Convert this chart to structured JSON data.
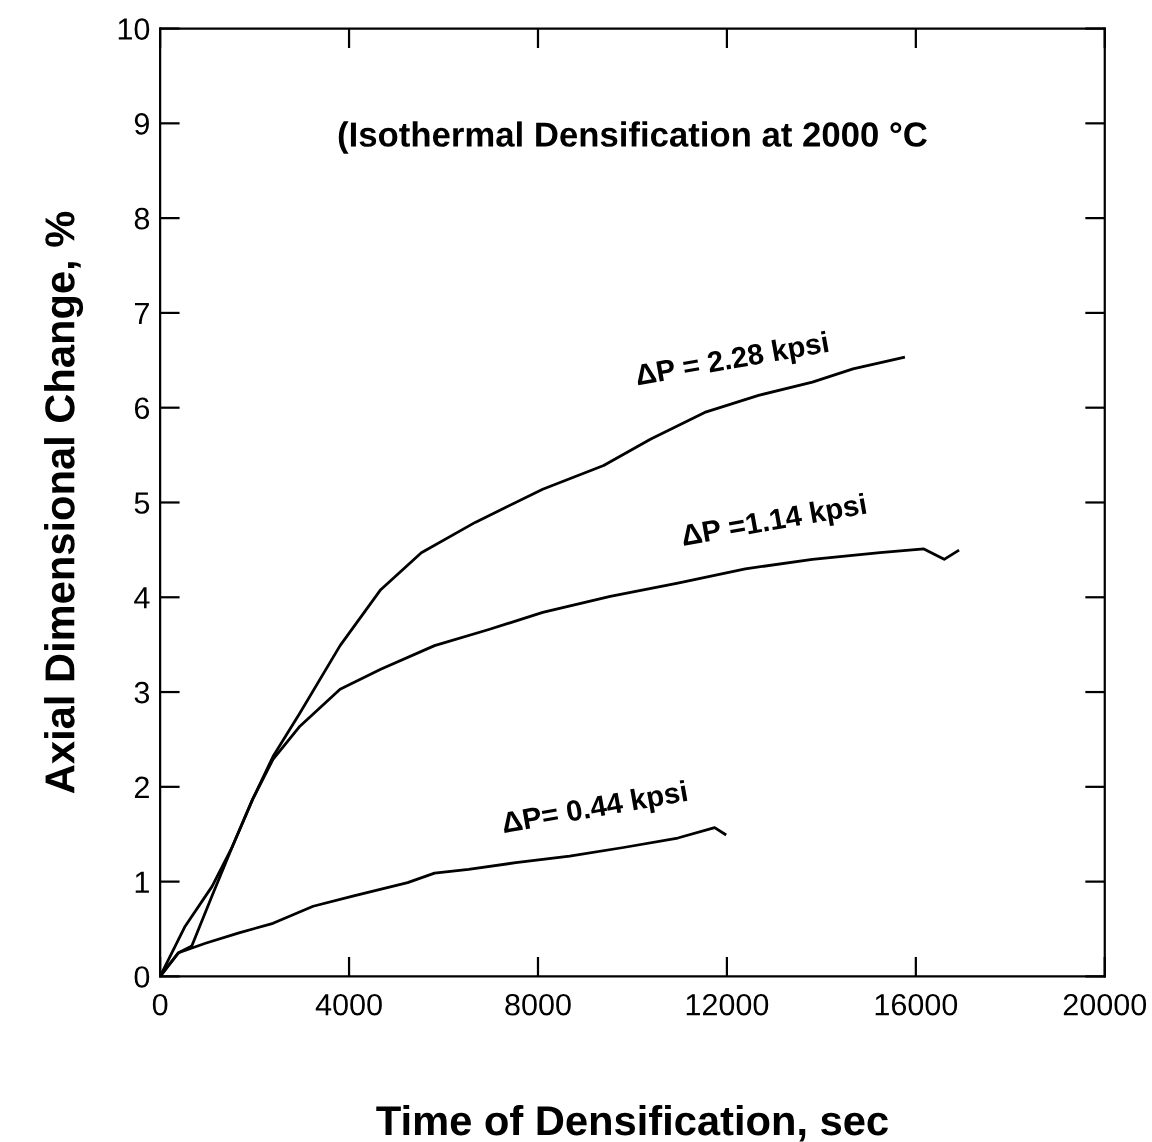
{
  "chart_data": {
    "type": "line",
    "title": "(Isothermal Densification at 2000 °C",
    "xlabel": "Time of Densification, sec",
    "ylabel": "Axial Dimensional Change, %",
    "xlim": [
      0,
      20000
    ],
    "xticks": [
      0,
      4000,
      8000,
      12000,
      16000,
      20000
    ],
    "ylim": [
      0,
      10
    ],
    "yticks": [
      0,
      1,
      2,
      3,
      4,
      5,
      6,
      7,
      8,
      9,
      10
    ],
    "grid": false,
    "legend": false,
    "line_style": "solid",
    "marker": "none",
    "series": [
      {
        "name": "ΔP = 2.28 kpsi",
        "color": "#000000",
        "x": [
          0,
          530,
          1100,
          1530,
          1960,
          2390,
          2960,
          3810,
          4670,
          5530,
          6670,
          8100,
          9390,
          10390,
          11530,
          12670,
          13810,
          14670,
          15740
        ],
        "values": [
          0,
          0.53,
          0.95,
          1.37,
          1.87,
          2.32,
          2.78,
          3.49,
          4.08,
          4.47,
          4.79,
          5.14,
          5.39,
          5.67,
          5.95,
          6.13,
          6.27,
          6.41,
          6.53
        ]
      },
      {
        "name": "ΔP =1.14 kpsi",
        "color": "#000000",
        "x": [
          0,
          390,
          670,
          1100,
          1530,
          1960,
          2390,
          2960,
          3810,
          4670,
          5810,
          6960,
          8100,
          9530,
          10960,
          12390,
          13810,
          15240,
          16170,
          16600,
          16890
        ],
        "values": [
          0,
          0.25,
          0.32,
          0.85,
          1.37,
          1.87,
          2.29,
          2.64,
          3.03,
          3.24,
          3.49,
          3.66,
          3.84,
          4.01,
          4.15,
          4.3,
          4.4,
          4.47,
          4.51,
          4.4,
          4.49
        ]
      },
      {
        "name": "ΔP= 0.44 kpsi",
        "color": "#000000",
        "x": [
          0,
          390,
          960,
          1670,
          2390,
          3240,
          4100,
          5240,
          5810,
          6530,
          7530,
          8670,
          9810,
          10960,
          11740,
          11960
        ],
        "values": [
          0,
          0.25,
          0.35,
          0.46,
          0.56,
          0.74,
          0.85,
          0.99,
          1.09,
          1.13,
          1.2,
          1.27,
          1.36,
          1.46,
          1.57,
          1.5
        ]
      }
    ]
  }
}
